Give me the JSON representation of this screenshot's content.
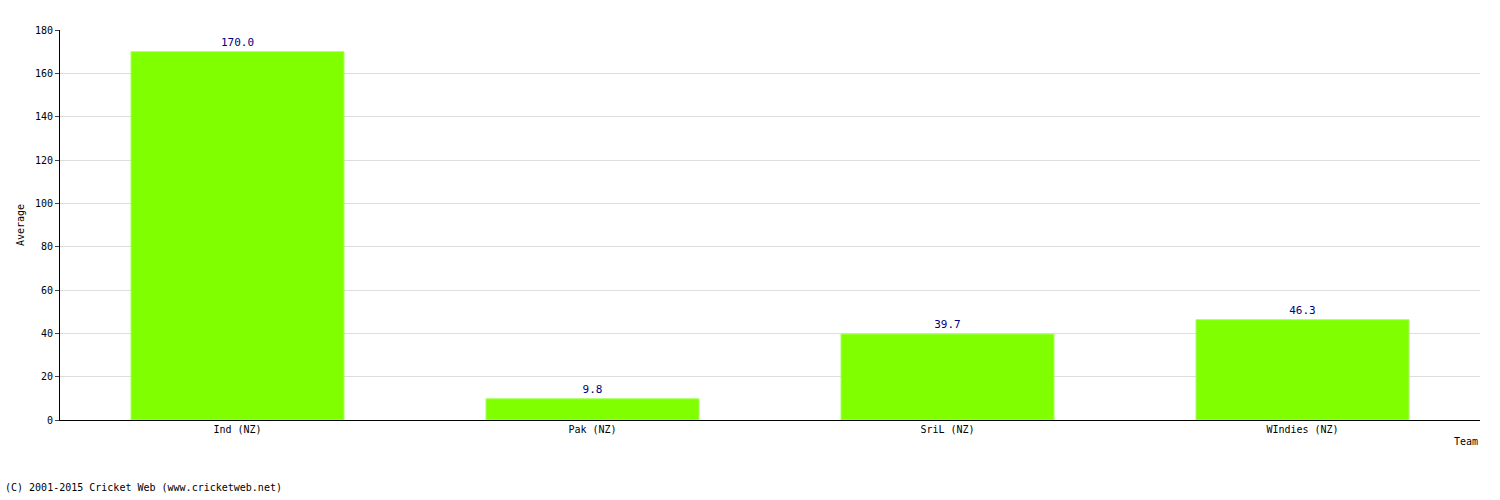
{
  "chart_data": {
    "type": "bar",
    "x_label": "Team",
    "y_label": "Average",
    "categories": [
      "Ind (NZ)",
      "Pak (NZ)",
      "SriL (NZ)",
      "WIndies (NZ)"
    ],
    "values": [
      170.0,
      9.8,
      39.7,
      46.3
    ],
    "value_labels": [
      "170.0",
      "9.8",
      "39.7",
      "46.3"
    ],
    "data_labels": true,
    "color": "#80ff00",
    "ylim": [
      0,
      180
    ],
    "yticks": [
      0,
      20,
      40,
      60,
      80,
      100,
      120,
      140,
      160,
      180
    ],
    "grid": true,
    "annotations": [
      "(C) 2001-2015 Cricket Web (www.cricketweb.net)"
    ]
  }
}
